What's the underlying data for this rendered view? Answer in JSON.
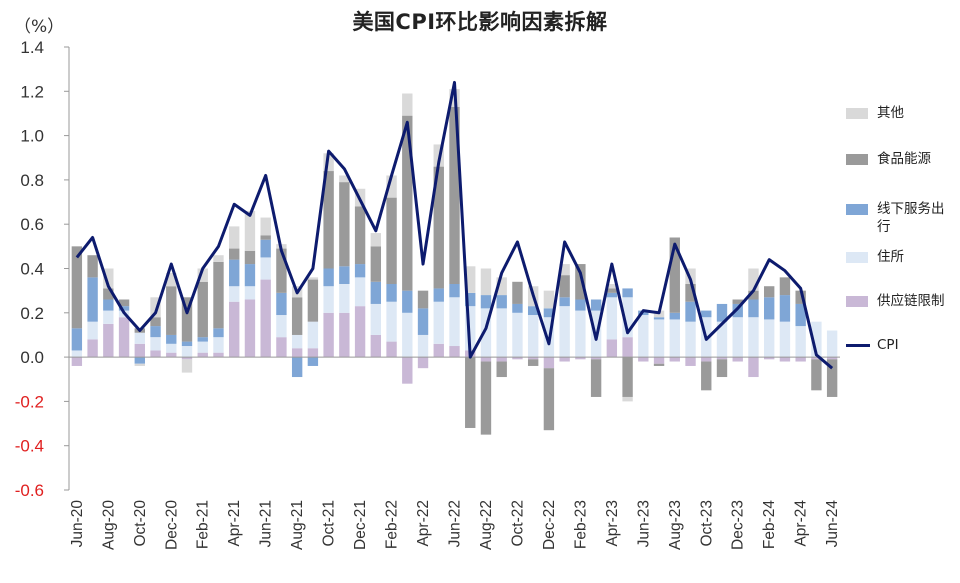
{
  "chart_data": {
    "type": "bar",
    "title": "美国CPI环比影响因素拆解",
    "unit_label": "（%）",
    "ylim": [
      -0.6,
      1.4
    ],
    "yticks": [
      "1.4",
      "1.2",
      "1.0",
      "0.8",
      "0.6",
      "0.4",
      "0.2",
      "0.0",
      "-0.2",
      "-0.4",
      "-0.6"
    ],
    "ytick_values": [
      1.4,
      1.2,
      1.0,
      0.8,
      0.6,
      0.4,
      0.2,
      0.0,
      -0.2,
      -0.4,
      -0.6
    ],
    "negative_tick_color": "#e02020",
    "categories": [
      "Jun-20",
      "Jul-20",
      "Aug-20",
      "Sep-20",
      "Oct-20",
      "Nov-20",
      "Dec-20",
      "Jan-21",
      "Feb-21",
      "Mar-21",
      "Apr-21",
      "May-21",
      "Jun-21",
      "Jul-21",
      "Aug-21",
      "Sep-21",
      "Oct-21",
      "Nov-21",
      "Dec-21",
      "Jan-22",
      "Feb-22",
      "Mar-22",
      "Apr-22",
      "May-22",
      "Jun-22",
      "Jul-22",
      "Aug-22",
      "Sep-22",
      "Oct-22",
      "Nov-22",
      "Dec-22",
      "Jan-23",
      "Feb-23",
      "Mar-23",
      "Apr-23",
      "May-23",
      "Jun-23",
      "Jul-23",
      "Aug-23",
      "Sep-23",
      "Oct-23",
      "Nov-23",
      "Dec-23",
      "Jan-24",
      "Feb-24",
      "Mar-24",
      "Apr-24",
      "May-24",
      "Jun-24"
    ],
    "xtick_labels": [
      "Jun-20",
      "Aug-20",
      "Oct-20",
      "Dec-20",
      "Feb-21",
      "Apr-21",
      "Jun-21",
      "Aug-21",
      "Oct-21",
      "Dec-21",
      "Feb-22",
      "Apr-22",
      "Jun-22",
      "Aug-22",
      "Oct-22",
      "Dec-22",
      "Feb-23",
      "Apr-23",
      "Jun-23",
      "Aug-23",
      "Oct-23",
      "Dec-23",
      "Feb-24",
      "Apr-24",
      "Jun-24"
    ],
    "series": [
      {
        "name": "供应链限制",
        "color": "#c9b8d6",
        "type": "bar",
        "values": [
          -0.04,
          0.08,
          0.15,
          0.18,
          0.06,
          0.03,
          0.02,
          -0.01,
          0.02,
          0.02,
          0.25,
          0.26,
          0.35,
          0.09,
          0.04,
          0.04,
          0.2,
          0.2,
          0.23,
          0.1,
          0.07,
          -0.12,
          -0.05,
          0.06,
          0.05,
          0.03,
          -0.02,
          -0.02,
          -0.01,
          -0.01,
          -0.05,
          -0.02,
          -0.01,
          -0.01,
          0.08,
          0.09,
          -0.02,
          -0.03,
          -0.02,
          -0.04,
          -0.02,
          -0.01,
          -0.02,
          -0.09,
          -0.01,
          -0.02,
          -0.02,
          -0.01,
          -0.01
        ]
      },
      {
        "name": "住所",
        "color": "#dde8f5",
        "type": "bar",
        "values": [
          0.03,
          0.08,
          0.06,
          0.03,
          0.05,
          0.06,
          0.04,
          0.05,
          0.05,
          0.07,
          0.07,
          0.06,
          0.1,
          0.1,
          0.06,
          0.12,
          0.12,
          0.13,
          0.13,
          0.14,
          0.18,
          0.2,
          0.1,
          0.19,
          0.22,
          0.2,
          0.22,
          0.22,
          0.2,
          0.19,
          0.18,
          0.23,
          0.21,
          0.21,
          0.19,
          0.18,
          0.19,
          0.17,
          0.17,
          0.16,
          0.18,
          0.16,
          0.18,
          0.18,
          0.17,
          0.16,
          0.14,
          0.16,
          0.12
        ]
      },
      {
        "name": "线下服务出行",
        "color": "#7fa6d6",
        "type": "bar",
        "values": [
          0.1,
          0.2,
          0.05,
          0.02,
          -0.03,
          0.05,
          0.04,
          0.02,
          0.02,
          0.04,
          0.12,
          0.1,
          0.08,
          0.1,
          -0.09,
          -0.04,
          0.08,
          0.08,
          0.06,
          0.1,
          0.08,
          0.1,
          0.12,
          0.06,
          0.06,
          0.06,
          0.06,
          0.06,
          0.04,
          0.04,
          0.04,
          0.04,
          0.05,
          0.05,
          0.02,
          0.04,
          0.02,
          0.01,
          0.03,
          0.09,
          0.03,
          0.08,
          0.06,
          0.08,
          0.1,
          0.12,
          0.1,
          0.0,
          0.0
        ]
      },
      {
        "name": "食品能源",
        "color": "#9a9a9a",
        "type": "bar",
        "values": [
          0.37,
          0.1,
          0.05,
          0.03,
          0.02,
          0.04,
          0.22,
          0.2,
          0.25,
          0.3,
          0.05,
          0.06,
          0.02,
          0.2,
          0.17,
          0.19,
          0.44,
          0.38,
          0.26,
          0.16,
          0.39,
          0.79,
          0.08,
          0.55,
          0.8,
          -0.32,
          -0.33,
          -0.07,
          0.1,
          -0.03,
          -0.28,
          0.1,
          0.16,
          -0.17,
          0.02,
          -0.18,
          0.0,
          -0.01,
          0.34,
          0.08,
          -0.13,
          -0.08,
          0.02,
          0.04,
          0.05,
          0.08,
          0.06,
          -0.14,
          -0.17
        ]
      },
      {
        "name": "其他",
        "color": "#d9d9d9",
        "type": "bar",
        "values": [
          0.0,
          0.0,
          0.09,
          0.0,
          -0.01,
          0.09,
          0.06,
          -0.06,
          0.06,
          0.03,
          0.1,
          0.18,
          0.08,
          0.02,
          0.05,
          0.01,
          0.08,
          0.03,
          0.08,
          0.06,
          0.1,
          0.1,
          0.0,
          0.1,
          0.08,
          0.12,
          0.12,
          0.08,
          0.0,
          0.09,
          0.08,
          0.05,
          0.0,
          0.0,
          0.02,
          -0.02,
          0.0,
          0.03,
          0.0,
          0.07,
          0.0,
          0.0,
          0.0,
          0.1,
          0.0,
          0.0,
          0.0,
          0.0,
          0.0
        ]
      },
      {
        "name": "CPI",
        "color": "#0d1b6e",
        "type": "line",
        "values": [
          0.45,
          0.54,
          0.32,
          0.2,
          0.12,
          0.2,
          0.42,
          0.2,
          0.4,
          0.5,
          0.69,
          0.64,
          0.82,
          0.48,
          0.29,
          0.4,
          0.93,
          0.85,
          0.71,
          0.57,
          0.82,
          1.06,
          0.42,
          0.88,
          1.24,
          0.0,
          0.13,
          0.38,
          0.52,
          0.28,
          0.06,
          0.52,
          0.38,
          0.08,
          0.42,
          0.11,
          0.21,
          0.2,
          0.51,
          0.35,
          0.08,
          0.15,
          0.22,
          0.3,
          0.44,
          0.39,
          0.31,
          0.01,
          -0.05
        ]
      }
    ],
    "legend_order": [
      "其他",
      "食品能源",
      "线下服务出行",
      "住所",
      "供应链限制",
      "CPI"
    ],
    "legend_position": "right",
    "grid": false
  }
}
